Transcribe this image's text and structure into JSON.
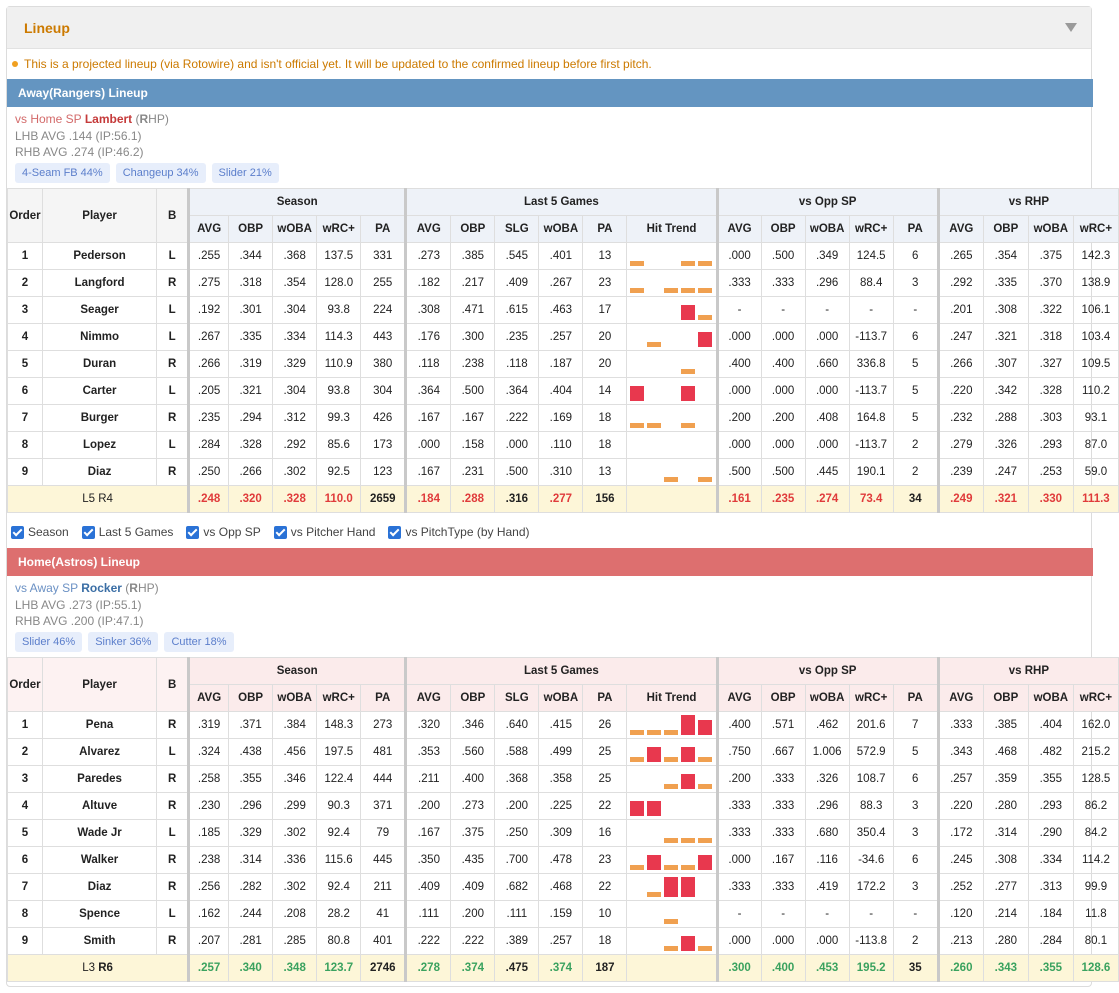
{
  "panel": {
    "title": "Lineup"
  },
  "notice": "This is a projected lineup (via Rotowire) and isn't official yet. It will be updated to the confirmed lineup before first pitch.",
  "groups": {
    "season": "Season",
    "last5": "Last 5 Games",
    "vs_opp": "vs Opp SP",
    "vs_hand": "vs RHP"
  },
  "cols": {
    "order": "Order",
    "player": "Player",
    "bat": "B",
    "season": [
      "AVG",
      "OBP",
      "wOBA",
      "wRC+",
      "PA"
    ],
    "last5": [
      "AVG",
      "OBP",
      "SLG",
      "wOBA",
      "PA"
    ],
    "hit_trend": "Hit Trend",
    "vs_opp": [
      "AVG",
      "OBP",
      "wOBA",
      "wRC+",
      "PA"
    ],
    "vs_hand": [
      "AVG",
      "OBP",
      "wOBA",
      "wRC+"
    ]
  },
  "filters": [
    "Season",
    "Last 5 Games",
    "vs Opp SP",
    "vs Pitcher Hand",
    "vs PitchType (by Hand)"
  ],
  "away": {
    "bar": "Away(Rangers) Lineup",
    "sp_prefix": "vs Home SP ",
    "sp_name": "Lambert",
    "sp_hand_a": " (",
    "sp_hand_b": "R",
    "sp_hand_c": "HP)",
    "lhb": "LHB AVG .144 (IP:56.1)",
    "rhb": "RHB AVG .274 (IP:46.2)",
    "pitches": [
      "4-Seam FB 44%",
      "Changeup 34%",
      "Slider 21%"
    ],
    "rows": [
      {
        "o": "1",
        "n": "Pederson",
        "b": "L",
        "s": [
          ".255",
          ".344",
          ".368",
          "137.5",
          "331"
        ],
        "l": [
          ".273",
          ".385",
          ".545",
          ".401",
          "13"
        ],
        "t": [
          1,
          0,
          0,
          1,
          1
        ],
        "v": [
          ".000",
          ".500",
          ".349",
          "124.5",
          "6"
        ],
        "h": [
          ".265",
          ".354",
          ".375",
          "142.3"
        ]
      },
      {
        "o": "2",
        "n": "Langford",
        "b": "R",
        "s": [
          ".275",
          ".318",
          ".354",
          "128.0",
          "255"
        ],
        "l": [
          ".182",
          ".217",
          ".409",
          ".267",
          "23"
        ],
        "t": [
          1,
          0,
          1,
          1,
          1
        ],
        "v": [
          ".333",
          ".333",
          ".296",
          "88.4",
          "3"
        ],
        "h": [
          ".292",
          ".335",
          ".370",
          "138.9"
        ]
      },
      {
        "o": "3",
        "n": "Seager",
        "b": "L",
        "s": [
          ".192",
          ".301",
          ".304",
          "93.8",
          "224"
        ],
        "l": [
          ".308",
          ".471",
          ".615",
          ".463",
          "17"
        ],
        "t": [
          0,
          0,
          0,
          3,
          1
        ],
        "v": [
          "-",
          "-",
          "-",
          "-",
          "-"
        ],
        "h": [
          ".201",
          ".308",
          ".322",
          "106.1"
        ]
      },
      {
        "o": "4",
        "n": "Nimmo",
        "b": "L",
        "s": [
          ".267",
          ".335",
          ".334",
          "114.3",
          "443"
        ],
        "l": [
          ".176",
          ".300",
          ".235",
          ".257",
          "20"
        ],
        "t": [
          0,
          1,
          0,
          0,
          3
        ],
        "v": [
          ".000",
          ".000",
          ".000",
          "-113.7",
          "6"
        ],
        "h": [
          ".247",
          ".321",
          ".318",
          "103.4"
        ]
      },
      {
        "o": "5",
        "n": "Duran",
        "b": "R",
        "s": [
          ".266",
          ".319",
          ".329",
          "110.9",
          "380"
        ],
        "l": [
          ".118",
          ".238",
          ".118",
          ".187",
          "20"
        ],
        "t": [
          0,
          0,
          0,
          1,
          0
        ],
        "v": [
          ".400",
          ".400",
          ".660",
          "336.8",
          "5"
        ],
        "h": [
          ".266",
          ".307",
          ".327",
          "109.5"
        ]
      },
      {
        "o": "6",
        "n": "Carter",
        "b": "L",
        "s": [
          ".205",
          ".321",
          ".304",
          "93.8",
          "304"
        ],
        "l": [
          ".364",
          ".500",
          ".364",
          ".404",
          "14"
        ],
        "t": [
          3,
          0,
          0,
          3,
          0
        ],
        "v": [
          ".000",
          ".000",
          ".000",
          "-113.7",
          "5"
        ],
        "h": [
          ".220",
          ".342",
          ".328",
          "110.2"
        ]
      },
      {
        "o": "7",
        "n": "Burger",
        "b": "R",
        "s": [
          ".235",
          ".294",
          ".312",
          "99.3",
          "426"
        ],
        "l": [
          ".167",
          ".167",
          ".222",
          ".169",
          "18"
        ],
        "t": [
          1,
          1,
          0,
          1,
          0
        ],
        "v": [
          ".200",
          ".200",
          ".408",
          "164.8",
          "5"
        ],
        "h": [
          ".232",
          ".288",
          ".303",
          "93.1"
        ]
      },
      {
        "o": "8",
        "n": "Lopez",
        "b": "L",
        "s": [
          ".284",
          ".328",
          ".292",
          "85.6",
          "173"
        ],
        "l": [
          ".000",
          ".158",
          ".000",
          ".110",
          "18"
        ],
        "t": [
          0,
          0,
          0,
          0,
          0
        ],
        "v": [
          ".000",
          ".000",
          ".000",
          "-113.7",
          "2"
        ],
        "h": [
          ".279",
          ".326",
          ".293",
          "87.0"
        ]
      },
      {
        "o": "9",
        "n": "Diaz",
        "b": "R",
        "s": [
          ".250",
          ".266",
          ".302",
          "92.5",
          "123"
        ],
        "l": [
          ".167",
          ".231",
          ".500",
          ".310",
          "13"
        ],
        "t": [
          0,
          0,
          1,
          0,
          1
        ],
        "v": [
          ".500",
          ".500",
          ".445",
          "190.1",
          "2"
        ],
        "h": [
          ".239",
          ".247",
          ".253",
          "59.0"
        ]
      }
    ],
    "summary": {
      "l_label": "L5",
      "r_label": "R4",
      "s": [
        ".248",
        ".320",
        ".328",
        "110.0",
        "2659"
      ],
      "l": [
        ".184",
        ".288",
        ".316",
        ".277",
        "156"
      ],
      "v": [
        ".161",
        ".235",
        ".274",
        "73.4",
        "34"
      ],
      "h": [
        ".249",
        ".321",
        ".330",
        "111.3"
      ]
    }
  },
  "home": {
    "bar": "Home(Astros) Lineup",
    "sp_prefix": "vs Away SP ",
    "sp_name": "Rocker",
    "sp_hand_a": " (",
    "sp_hand_b": "R",
    "sp_hand_c": "HP)",
    "lhb": "LHB AVG .273 (IP:55.1)",
    "rhb": "RHB AVG .200 (IP:47.1)",
    "pitches": [
      "Slider 46%",
      "Sinker 36%",
      "Cutter 18%"
    ],
    "rows": [
      {
        "o": "1",
        "n": "Pena",
        "b": "R",
        "s": [
          ".319",
          ".371",
          ".384",
          "148.3",
          "273"
        ],
        "l": [
          ".320",
          ".346",
          ".640",
          ".415",
          "26"
        ],
        "t": [
          1,
          1,
          1,
          4,
          3
        ],
        "v": [
          ".400",
          ".571",
          ".462",
          "201.6",
          "7"
        ],
        "h": [
          ".333",
          ".385",
          ".404",
          "162.0"
        ]
      },
      {
        "o": "2",
        "n": "Alvarez",
        "b": "L",
        "s": [
          ".324",
          ".438",
          ".456",
          "197.5",
          "481"
        ],
        "l": [
          ".353",
          ".560",
          ".588",
          ".499",
          "25"
        ],
        "t": [
          1,
          3,
          1,
          3,
          1
        ],
        "v": [
          ".750",
          ".667",
          "1.006",
          "572.9",
          "5"
        ],
        "h": [
          ".343",
          ".468",
          ".482",
          "215.2"
        ]
      },
      {
        "o": "3",
        "n": "Paredes",
        "b": "R",
        "s": [
          ".258",
          ".355",
          ".346",
          "122.4",
          "444"
        ],
        "l": [
          ".211",
          ".400",
          ".368",
          ".358",
          "25"
        ],
        "t": [
          0,
          0,
          1,
          3,
          1
        ],
        "v": [
          ".200",
          ".333",
          ".326",
          "108.7",
          "6"
        ],
        "h": [
          ".257",
          ".359",
          ".355",
          "128.5"
        ]
      },
      {
        "o": "4",
        "n": "Altuve",
        "b": "R",
        "s": [
          ".230",
          ".296",
          ".299",
          "90.3",
          "371"
        ],
        "l": [
          ".200",
          ".273",
          ".200",
          ".225",
          "22"
        ],
        "t": [
          3,
          3,
          0,
          0,
          0
        ],
        "v": [
          ".333",
          ".333",
          ".296",
          "88.3",
          "3"
        ],
        "h": [
          ".220",
          ".280",
          ".293",
          "86.2"
        ]
      },
      {
        "o": "5",
        "n": "Wade Jr",
        "b": "L",
        "s": [
          ".185",
          ".329",
          ".302",
          "92.4",
          "79"
        ],
        "l": [
          ".167",
          ".375",
          ".250",
          ".309",
          "16"
        ],
        "t": [
          0,
          0,
          1,
          1,
          1
        ],
        "v": [
          ".333",
          ".333",
          ".680",
          "350.4",
          "3"
        ],
        "h": [
          ".172",
          ".314",
          ".290",
          "84.2"
        ]
      },
      {
        "o": "6",
        "n": "Walker",
        "b": "R",
        "s": [
          ".238",
          ".314",
          ".336",
          "115.6",
          "445"
        ],
        "l": [
          ".350",
          ".435",
          ".700",
          ".478",
          "23"
        ],
        "t": [
          1,
          3,
          1,
          1,
          3
        ],
        "v": [
          ".000",
          ".167",
          ".116",
          "-34.6",
          "6"
        ],
        "h": [
          ".245",
          ".308",
          ".334",
          "114.2"
        ]
      },
      {
        "o": "7",
        "n": "Diaz",
        "b": "R",
        "s": [
          ".256",
          ".282",
          ".302",
          "92.4",
          "211"
        ],
        "l": [
          ".409",
          ".409",
          ".682",
          ".468",
          "22"
        ],
        "t": [
          0,
          1,
          4,
          4,
          0
        ],
        "v": [
          ".333",
          ".333",
          ".419",
          "172.2",
          "3"
        ],
        "h": [
          ".252",
          ".277",
          ".313",
          "99.9"
        ]
      },
      {
        "o": "8",
        "n": "Spence",
        "b": "L",
        "s": [
          ".162",
          ".244",
          ".208",
          "28.2",
          "41"
        ],
        "l": [
          ".111",
          ".200",
          ".111",
          ".159",
          "10"
        ],
        "t": [
          0,
          0,
          1,
          0,
          0
        ],
        "v": [
          "-",
          "-",
          "-",
          "-",
          "-"
        ],
        "h": [
          ".120",
          ".214",
          ".184",
          "11.8"
        ]
      },
      {
        "o": "9",
        "n": "Smith",
        "b": "R",
        "s": [
          ".207",
          ".281",
          ".285",
          "80.8",
          "401"
        ],
        "l": [
          ".222",
          ".222",
          ".389",
          ".257",
          "18"
        ],
        "t": [
          0,
          0,
          1,
          3,
          1
        ],
        "v": [
          ".000",
          ".000",
          ".000",
          "-113.8",
          "2"
        ],
        "h": [
          ".213",
          ".280",
          ".284",
          "80.1"
        ]
      }
    ],
    "summary": {
      "l_label": "L3",
      "r_label": "R6",
      "s": [
        ".257",
        ".340",
        ".348",
        "123.7",
        "2746"
      ],
      "l": [
        ".278",
        ".374",
        ".475",
        ".374",
        "187"
      ],
      "v": [
        ".300",
        ".400",
        ".453",
        "195.2",
        "35"
      ],
      "h": [
        ".260",
        ".343",
        ".355",
        "128.6"
      ]
    }
  },
  "colors": {
    "accent": "#cc7a00",
    "away_bar": "#6495c1",
    "home_bar": "#dd6f6f",
    "low": "#e03b3b",
    "high": "#3aa25f",
    "trend_hit": "#f0a050",
    "trend_multi": "#e8384e"
  }
}
